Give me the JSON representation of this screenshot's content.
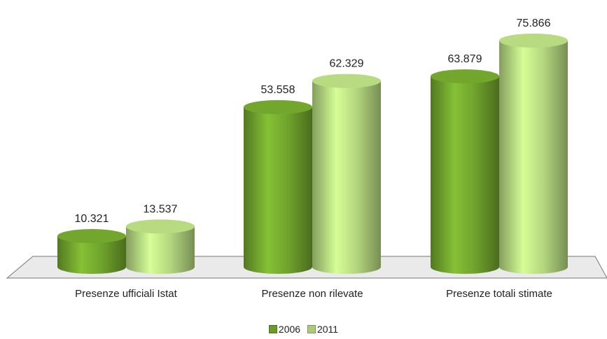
{
  "chart_data": {
    "type": "bar",
    "categories": [
      "Presenze ufficiali Istat",
      "Presenze non rilevate",
      "Presenze totali stimate"
    ],
    "series": [
      {
        "name": "2006",
        "values": [
          10321,
          53558,
          63879
        ],
        "labels": [
          "10.321",
          "53.558",
          "63.879"
        ],
        "color": "#6a9a2a"
      },
      {
        "name": "2011",
        "values": [
          13537,
          62329,
          75866
        ],
        "labels": [
          "13.537",
          "62.329",
          "75.866"
        ],
        "color": "#aacb78"
      }
    ],
    "title": "",
    "xlabel": "",
    "ylabel": "",
    "ylim": [
      0,
      80000
    ],
    "grid": false,
    "legend_position": "bottom",
    "shape": "cylinder",
    "colors": {
      "dark": "#6a9a2a",
      "light": "#aacb78",
      "floor": "#e8e8e8",
      "floor_edge": "#777777"
    }
  }
}
